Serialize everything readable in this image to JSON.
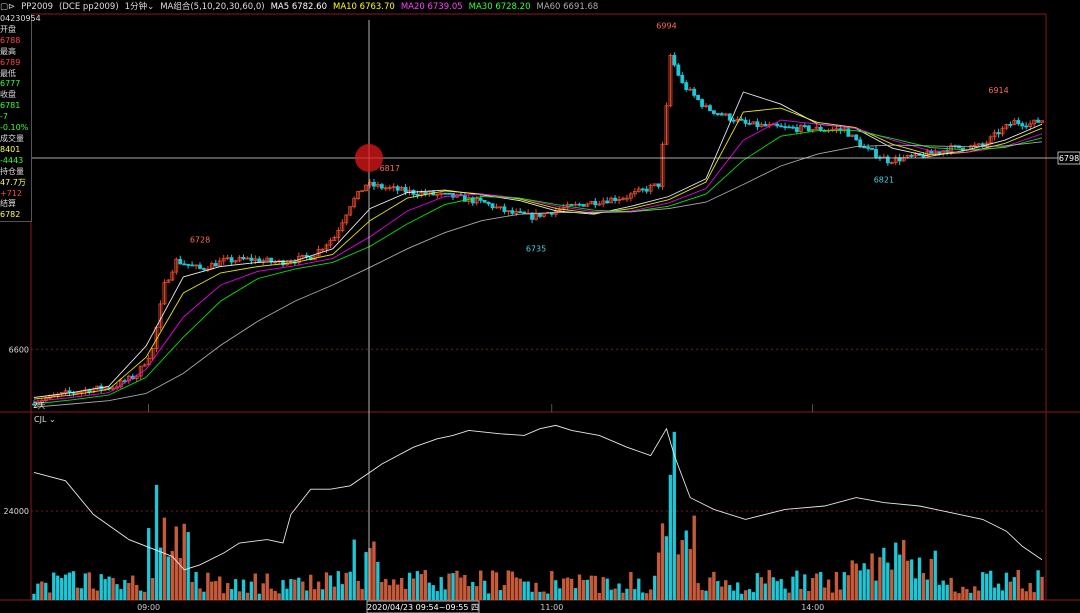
{
  "header": {
    "contract_label": "PP2009",
    "contract_code": "(DCE pp2009)",
    "period": "1分钟",
    "ma_group": "MA组合(5,10,20,30,60,0)",
    "ma5": "MA5 6782.60",
    "ma10": "MA10 6763.70",
    "ma20": "MA20 6739.05",
    "ma30": "MA30 6728.20",
    "ma60": "MA60 6691.68"
  },
  "info_panel": [
    {
      "text": "04230954",
      "color": "#dddddd"
    },
    {
      "text": "开盘",
      "color": "#dddddd"
    },
    {
      "text": "6788",
      "color": "#ff4444"
    },
    {
      "text": "最高",
      "color": "#dddddd"
    },
    {
      "text": "6789",
      "color": "#ff4444"
    },
    {
      "text": "最低",
      "color": "#dddddd"
    },
    {
      "text": "6777",
      "color": "#33ff33"
    },
    {
      "text": "收盘",
      "color": "#dddddd"
    },
    {
      "text": "6781",
      "color": "#33ff33"
    },
    {
      "text": "-7",
      "color": "#33ff33"
    },
    {
      "text": "-0.10%",
      "color": "#33ff33"
    },
    {
      "text": "成交量",
      "color": "#dddddd"
    },
    {
      "text": "8401",
      "color": "#ffff44"
    },
    {
      "text": "-4443",
      "color": "#33ff33"
    },
    {
      "text": "持仓量",
      "color": "#dddddd"
    },
    {
      "text": "47.7万",
      "color": "#ffff44"
    },
    {
      "text": "+712",
      "color": "#ff4444"
    },
    {
      "text": "结算",
      "color": "#dddddd"
    },
    {
      "text": "6782",
      "color": "#ffff44"
    }
  ],
  "crosshair": {
    "price_label": "6798",
    "time_label": "2020/04/23 09:54~09:55 四"
  },
  "sub_panel_label": "CJL",
  "day_label": "2天",
  "chart_data": {
    "type": "candlestick",
    "price_axis": {
      "ylim": [
        6522,
        7017
      ],
      "ticks": [
        6600
      ],
      "gridline": 6600
    },
    "volume_axis": {
      "ticks": [
        24000
      ]
    },
    "time_ticks": [
      "09:00",
      "11:00",
      "14:00"
    ],
    "annotations": [
      {
        "label": "6728",
        "kind": "high",
        "price": 6728
      },
      {
        "label": "6817",
        "kind": "high",
        "price": 6817
      },
      {
        "label": "6735",
        "kind": "low",
        "price": 6735
      },
      {
        "label": "6994",
        "kind": "high",
        "price": 6994
      },
      {
        "label": "6821",
        "kind": "low",
        "price": 6821
      },
      {
        "label": "6914",
        "kind": "high",
        "price": 6914
      }
    ],
    "close_path": [
      [
        0,
        6535
      ],
      [
        8,
        6545
      ],
      [
        14,
        6550
      ],
      [
        20,
        6553
      ],
      [
        26,
        6568
      ],
      [
        30,
        6600
      ],
      [
        33,
        6680
      ],
      [
        36,
        6710
      ],
      [
        42,
        6700
      ],
      [
        48,
        6710
      ],
      [
        55,
        6712
      ],
      [
        62,
        6708
      ],
      [
        70,
        6715
      ],
      [
        76,
        6740
      ],
      [
        80,
        6780
      ],
      [
        84,
        6805
      ],
      [
        90,
        6800
      ],
      [
        96,
        6795
      ],
      [
        106,
        6790
      ],
      [
        114,
        6782
      ],
      [
        120,
        6770
      ],
      [
        126,
        6765
      ],
      [
        132,
        6773
      ],
      [
        140,
        6782
      ],
      [
        150,
        6790
      ],
      [
        158,
        6805
      ],
      [
        160,
        6900
      ],
      [
        161,
        6965
      ],
      [
        164,
        6930
      ],
      [
        170,
        6900
      ],
      [
        180,
        6880
      ],
      [
        190,
        6875
      ],
      [
        205,
        6873
      ],
      [
        210,
        6850
      ],
      [
        216,
        6835
      ],
      [
        224,
        6840
      ],
      [
        232,
        6850
      ],
      [
        240,
        6853
      ],
      [
        244,
        6870
      ],
      [
        248,
        6883
      ],
      [
        252,
        6880
      ],
      [
        255,
        6885
      ]
    ],
    "ma_series": [
      {
        "name": "MA5",
        "color": "#ffffff",
        "values": [
          6540,
          6546,
          6554,
          6604,
          6690,
          6703,
          6708,
          6710,
          6725,
          6775,
          6795,
          6798,
          6792,
          6785,
          6772,
          6768,
          6778,
          6790,
          6812,
          6920,
          6905,
          6880,
          6875,
          6850,
          6840,
          6848,
          6860,
          6880
        ]
      },
      {
        "name": "MA10",
        "color": "#ffff00",
        "values": [
          6538,
          6543,
          6550,
          6590,
          6670,
          6695,
          6703,
          6708,
          6718,
          6760,
          6788,
          6797,
          6793,
          6787,
          6775,
          6769,
          6775,
          6786,
          6808,
          6895,
          6900,
          6882,
          6876,
          6855,
          6842,
          6845,
          6856,
          6875
        ]
      },
      {
        "name": "MA20",
        "color": "#ff00ff",
        "values": [
          6535,
          6540,
          6546,
          6575,
          6640,
          6680,
          6697,
          6704,
          6713,
          6740,
          6772,
          6790,
          6793,
          6788,
          6778,
          6771,
          6772,
          6782,
          6800,
          6860,
          6885,
          6880,
          6875,
          6860,
          6847,
          6845,
          6852,
          6868
        ]
      },
      {
        "name": "MA30",
        "color": "#00ff00",
        "values": [
          6532,
          6537,
          6543,
          6565,
          6615,
          6660,
          6688,
          6700,
          6708,
          6728,
          6756,
          6780,
          6790,
          6788,
          6780,
          6773,
          6771,
          6778,
          6793,
          6835,
          6865,
          6872,
          6872,
          6862,
          6851,
          6848,
          6851,
          6863
        ]
      },
      {
        "name": "MA60",
        "color": "#bbbbbb",
        "values": [
          6528,
          6532,
          6536,
          6545,
          6570,
          6605,
          6635,
          6660,
          6680,
          6702,
          6725,
          6745,
          6760,
          6768,
          6770,
          6770,
          6771,
          6775,
          6783,
          6805,
          6828,
          6843,
          6852,
          6854,
          6853,
          6852,
          6853,
          6858
        ]
      }
    ],
    "open_interest_path": [
      [
        0,
        70
      ],
      [
        8,
        65
      ],
      [
        15,
        45
      ],
      [
        24,
        30
      ],
      [
        35,
        20
      ],
      [
        38,
        12
      ],
      [
        42,
        15
      ],
      [
        48,
        22
      ],
      [
        52,
        28
      ],
      [
        59,
        30
      ],
      [
        63,
        28
      ],
      [
        65,
        45
      ],
      [
        70,
        60
      ],
      [
        75,
        60
      ],
      [
        80,
        62
      ],
      [
        88,
        75
      ],
      [
        96,
        85
      ],
      [
        102,
        90
      ],
      [
        106,
        92
      ],
      [
        110,
        95
      ],
      [
        118,
        93
      ],
      [
        124,
        92
      ],
      [
        128,
        96
      ],
      [
        132,
        98
      ],
      [
        136,
        95
      ],
      [
        143,
        92
      ],
      [
        150,
        85
      ],
      [
        156,
        80
      ],
      [
        160,
        96
      ],
      [
        162,
        80
      ],
      [
        166,
        55
      ],
      [
        172,
        48
      ],
      [
        180,
        42
      ],
      [
        190,
        48
      ],
      [
        200,
        50
      ],
      [
        208,
        55
      ],
      [
        215,
        52
      ],
      [
        224,
        50
      ],
      [
        232,
        46
      ],
      [
        240,
        42
      ],
      [
        246,
        35
      ],
      [
        250,
        26
      ],
      [
        255,
        18
      ]
    ]
  },
  "colors": {
    "up": "#e84a2c",
    "down": "#1cc8d8",
    "grid_red": "#7a1a1a",
    "axis_border": "#8a1a1a"
  }
}
